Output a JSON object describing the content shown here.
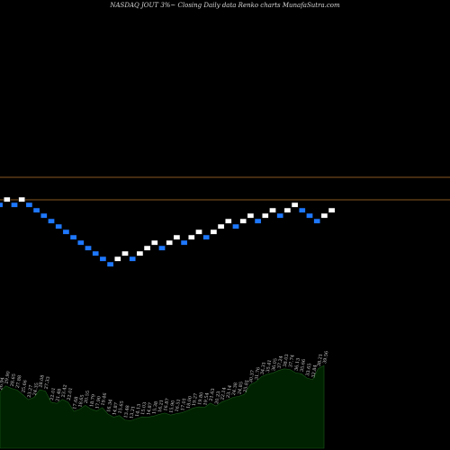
{
  "title": "NASDAQ JOUT 3%~  Closing Daily data  Renko  charts MunafaSutra.com",
  "colors": {
    "background": "#000000",
    "up_brick": "#ffffff",
    "down_brick": "#1e78ff",
    "brick_outline": "#000000",
    "level_line": "#b8742a",
    "volume_fill": "#002200",
    "volume_stroke": "#1a5a1a"
  },
  "chart_data": [
    {
      "type": "renko",
      "brick_pct": 3,
      "directions": [
        "down",
        "up",
        "down",
        "up",
        "down",
        "down",
        "down",
        "down",
        "down",
        "down",
        "down",
        "down",
        "down",
        "down",
        "down",
        "down",
        "up",
        "up",
        "down",
        "up",
        "up",
        "up",
        "down",
        "up",
        "up",
        "down",
        "up",
        "up",
        "down",
        "up",
        "up",
        "up",
        "down",
        "up",
        "up",
        "down",
        "up",
        "up",
        "down",
        "up",
        "up",
        "down",
        "down",
        "down",
        "up",
        "up"
      ],
      "reference_lines": 2
    },
    {
      "type": "area",
      "series": [
        {
          "values": [
            26.94,
            29.9,
            28.65,
            27.88,
            25.66,
            23.27,
            24.35,
            28.08,
            27.33,
            22.01,
            21.48,
            23.42,
            22.01,
            17.68,
            18.65,
            20.55,
            18.79,
            17.9,
            19.46,
            16.34,
            14.87,
            15.65,
            13.48,
            13.21,
            14.13,
            15.03,
            14.87,
            15.38,
            16.21,
            16.87,
            15.9,
            16.51,
            17.01,
            18.0,
            19.27,
            19.8,
            19.54,
            21.63,
            20.23,
            22.14,
            23.14,
            24.38,
            24.85,
            25.81,
            30.37,
            31.76,
            34.31,
            35.41,
            36.05,
            37.24,
            38.03,
            37.74,
            36.13,
            35.66,
            33.65,
            32.84,
            38.21,
            39.56
          ],
          "labels": [
            "26.94",
            "29.90",
            "28.65",
            "27.88",
            "25.66",
            "23.27",
            "24.35",
            "28.08",
            "27.33",
            "22.01",
            "21.48",
            "23.42",
            "22.01",
            "17.68",
            "18.65",
            "20.55",
            "18.79",
            "17.90",
            "19.46",
            "16.34",
            "14.87",
            "15.65",
            "13.48",
            "13.21",
            "14.13",
            "15.03",
            "14.87",
            "15.38",
            "16.21",
            "16.87",
            "15.90",
            "16.51",
            "17.01",
            "18.00",
            "19.27",
            "19.80",
            "19.54",
            "21.63",
            "20.23",
            "22.14",
            "23.14",
            "24.38",
            "24.85",
            "25.81",
            "30.37",
            "31.76",
            "34.31",
            "35.41",
            "36.05",
            "37.24",
            "38.03",
            "37.74",
            "36.13",
            "35.66",
            "33.65",
            "32.84",
            "38.21",
            "39.56"
          ]
        }
      ]
    }
  ]
}
